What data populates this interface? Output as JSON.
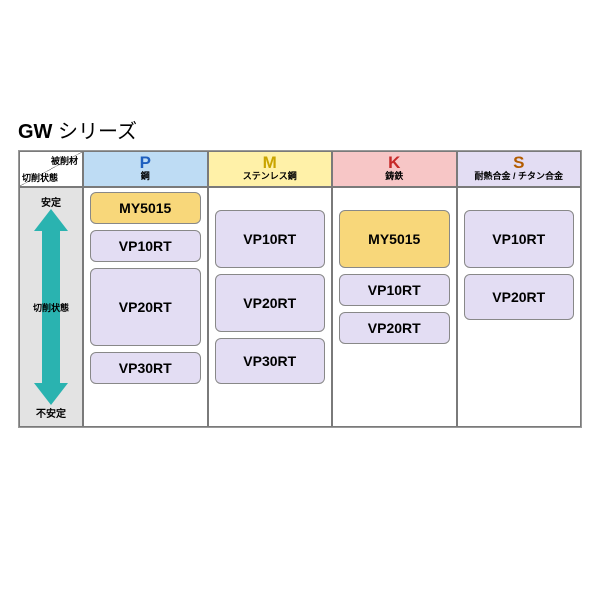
{
  "title_bold": "GW",
  "title_rest": " シリーズ",
  "corner": {
    "top_right": "被削材",
    "bottom_left": "切削状態"
  },
  "columns": [
    {
      "code": "P",
      "sub": "鋼",
      "header_bg": "#bedcf4",
      "code_color": "#1e5fbf"
    },
    {
      "code": "M",
      "sub": "ステンレス鋼",
      "header_bg": "#fff1a8",
      "code_color": "#c9a400"
    },
    {
      "code": "K",
      "sub": "鋳鉄",
      "header_bg": "#f7c6c6",
      "code_color": "#c62828"
    },
    {
      "code": "S",
      "sub": "耐熱合金 / チタン合金",
      "header_bg": "#e3ddf3",
      "code_color": "#b35c00"
    }
  ],
  "side": {
    "top": "安定",
    "bottom": "不安定",
    "mid": "切削状態",
    "arrow_color": "#2ab3b0"
  },
  "chip_colors": {
    "yellow": "#f8d77a",
    "violet": "#e3ddf3"
  },
  "body_height": 240,
  "cells": {
    "P": [
      {
        "label": "MY5015",
        "color": "yellow",
        "h": 32
      },
      {
        "label": "VP10RT",
        "color": "violet",
        "h": 32
      },
      {
        "label": "VP20RT",
        "color": "violet",
        "h": 78
      },
      {
        "label": "VP30RT",
        "color": "violet",
        "h": 32
      }
    ],
    "M": [
      {
        "label": "",
        "color": "none",
        "h": 12
      },
      {
        "label": "VP10RT",
        "color": "violet",
        "h": 58
      },
      {
        "label": "VP20RT",
        "color": "violet",
        "h": 58
      },
      {
        "label": "VP30RT",
        "color": "violet",
        "h": 46
      }
    ],
    "K": [
      {
        "label": "",
        "color": "none",
        "h": 12
      },
      {
        "label": "MY5015",
        "color": "yellow",
        "h": 58
      },
      {
        "label": "VP10RT",
        "color": "violet",
        "h": 32
      },
      {
        "label": "VP20RT",
        "color": "violet",
        "h": 32
      }
    ],
    "S": [
      {
        "label": "",
        "color": "none",
        "h": 12
      },
      {
        "label": "VP10RT",
        "color": "violet",
        "h": 58
      },
      {
        "label": "VP20RT",
        "color": "violet",
        "h": 46
      }
    ]
  }
}
